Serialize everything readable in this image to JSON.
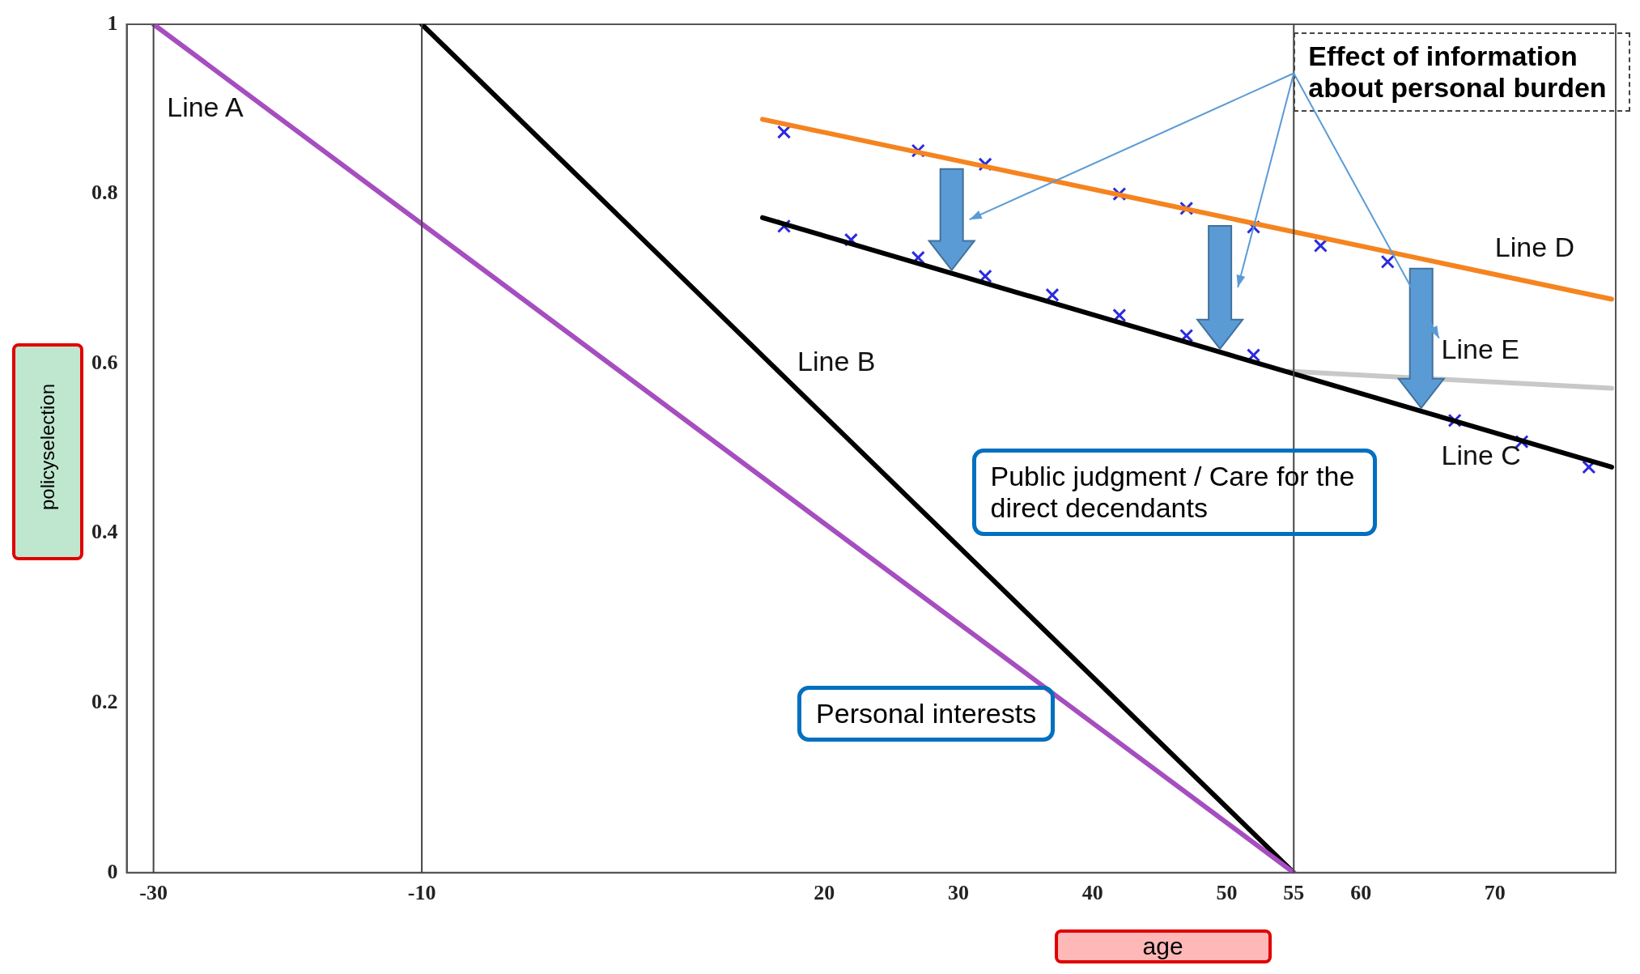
{
  "chart_data": {
    "type": "line",
    "xlabel": "age",
    "ylabel": "policyselection",
    "xlim": [
      -32,
      79
    ],
    "ylim": [
      0,
      1
    ],
    "xticks": [
      -30,
      -10,
      20,
      30,
      40,
      50,
      55,
      60,
      70
    ],
    "yticks": [
      0,
      0.2,
      0.4,
      0.6,
      0.8,
      1
    ],
    "grid": false,
    "legend": false,
    "ref_lines": [
      {
        "axis": "x",
        "value": -30,
        "color": "#444444"
      },
      {
        "axis": "x",
        "value": -10,
        "color": "#444444"
      },
      {
        "axis": "x",
        "value": 55,
        "color": "#444444"
      }
    ],
    "series": [
      {
        "name": "Line A",
        "type": "line",
        "color": "#a64ec0",
        "marker": "none",
        "x": [
          -30,
          55
        ],
        "values": [
          1,
          0
        ]
      },
      {
        "name": "Line B",
        "type": "line",
        "color": "#000000",
        "marker": "none",
        "x": [
          -10,
          55
        ],
        "values": [
          1,
          0
        ]
      },
      {
        "name": "Line C",
        "type": "line",
        "color": "#000000",
        "marker": "none",
        "x": [
          15.4,
          78.7
        ],
        "values": [
          0.772,
          0.478
        ]
      },
      {
        "name": "Line D",
        "type": "line",
        "color": "#f5841f",
        "marker": "none",
        "x": [
          15.4,
          78.7
        ],
        "values": [
          0.888,
          0.676
        ]
      },
      {
        "name": "Line E",
        "type": "line",
        "color": "#c8c8c8",
        "marker": "none",
        "x": [
          54.6,
          78.7
        ],
        "values": [
          0.591,
          0.571
        ]
      },
      {
        "type": "scatter",
        "color": "#2a2ae0",
        "marker": "cross",
        "x": [
          17,
          27,
          32,
          42,
          47,
          52,
          57,
          62
        ],
        "values": [
          0.873,
          0.851,
          0.835,
          0.8,
          0.783,
          0.761,
          0.739,
          0.72
        ]
      },
      {
        "type": "scatter",
        "color": "#2a2ae0",
        "marker": "cross",
        "x": [
          17,
          22,
          27,
          32,
          37,
          42,
          47,
          52,
          67,
          72,
          77
        ],
        "values": [
          0.762,
          0.746,
          0.725,
          0.703,
          0.681,
          0.657,
          0.633,
          0.61,
          0.533,
          0.508,
          0.478
        ]
      }
    ],
    "annotations": [
      "Personal interests",
      "Public judgment / Care for the direct decendants",
      "Effect of information about personal burden"
    ]
  }
}
